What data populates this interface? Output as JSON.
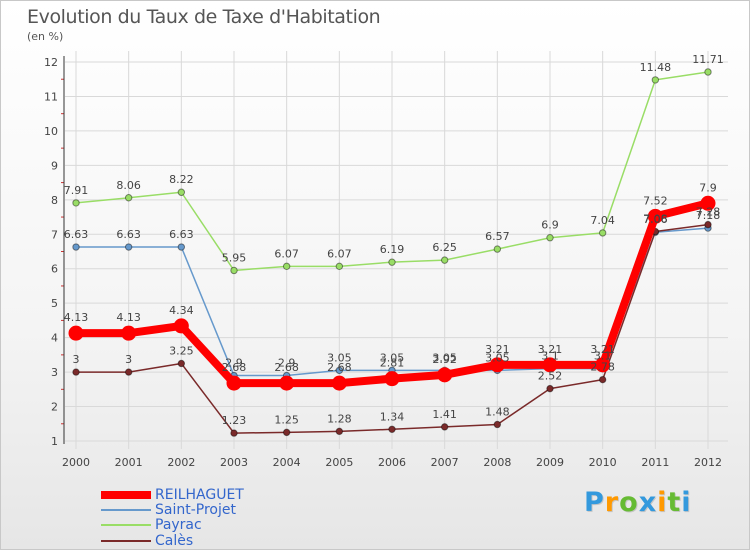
{
  "title": "Evolution du Taux de Taxe d'Habitation",
  "unit_label": "(en %)",
  "colors": {
    "background": "#f4f4f4",
    "grid": "#d9d9d9",
    "axis": "#333333",
    "label": "#444444"
  },
  "chart_data": {
    "type": "line",
    "title": "Evolution du Taux de Taxe d'Habitation",
    "ylabel": "(en %)",
    "x": [
      "2000",
      "2001",
      "2002",
      "2003",
      "2004",
      "2005",
      "2006",
      "2007",
      "2008",
      "2009",
      "2010",
      "2011",
      "2012"
    ],
    "ylim": [
      1,
      12
    ],
    "yticks": [
      "1",
      "2",
      "3",
      "4",
      "5",
      "6",
      "7",
      "8",
      "9",
      "10",
      "11",
      "12"
    ],
    "grid": true,
    "legend_position": "bottom-left",
    "series": [
      {
        "name": "REILHAGUET",
        "color": "#ff0000",
        "text_color": "#3366cc",
        "values": [
          4.13,
          4.13,
          4.34,
          2.68,
          2.68,
          2.68,
          2.81,
          2.92,
          3.21,
          3.21,
          3.21,
          7.52,
          7.9
        ],
        "labels": [
          "4.13",
          "4.13",
          "4.34",
          "2.68",
          "2.68",
          "2.68",
          "2.81",
          "2.92",
          "3.21",
          "3.21",
          "3.21",
          "7.52",
          "7.9"
        ]
      },
      {
        "name": "Saint-Projet",
        "color": "#6699cc",
        "text_color": "#3366cc",
        "values": [
          6.63,
          6.63,
          6.63,
          2.9,
          2.9,
          3.05,
          3.05,
          3.05,
          3.05,
          3.1,
          3.1,
          7.06,
          7.18
        ],
        "labels": [
          "6.63",
          "6.63",
          "6.63",
          "2.9",
          "2.9",
          "3.05",
          "3.05",
          "3.05",
          "3.05",
          "3.1",
          "3.1",
          "7.06",
          "7.18"
        ]
      },
      {
        "name": "Payrac",
        "color": "#99dd66",
        "text_color": "#3366cc",
        "values": [
          7.91,
          8.06,
          8.22,
          5.95,
          6.07,
          6.07,
          6.19,
          6.25,
          6.57,
          6.9,
          7.04,
          11.48,
          11.71
        ],
        "labels": [
          "7.91",
          "8.06",
          "8.22",
          "5.95",
          "6.07",
          "6.07",
          "6.19",
          "6.25",
          "6.57",
          "6.9",
          "7.04",
          "11.48",
          "11.71"
        ]
      },
      {
        "name": "Calès",
        "color": "#7a2a2a",
        "text_color": "#3366cc",
        "values": [
          3,
          3,
          3.25,
          1.23,
          1.25,
          1.28,
          1.34,
          1.41,
          1.48,
          2.52,
          2.78,
          7.08,
          7.28
        ],
        "labels": [
          "3",
          "3",
          "3.25",
          "1.23",
          "1.25",
          "1.28",
          "1.34",
          "1.41",
          "1.48",
          "2.52",
          "2.78",
          "7.08",
          "7.28"
        ]
      }
    ]
  },
  "logo": {
    "letters": [
      "P",
      "r",
      "o",
      "x",
      "i",
      "t",
      "i"
    ],
    "colors": [
      "#3399dd",
      "#ff9900",
      "#66bb33",
      "#3399dd",
      "#ff9900",
      "#66bb33",
      "#3399dd"
    ]
  }
}
